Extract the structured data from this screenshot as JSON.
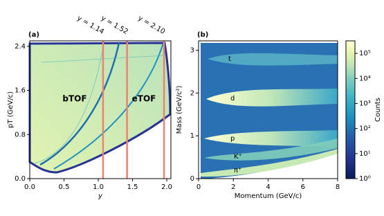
{
  "chart_data": [
    {
      "type": "heatmap",
      "panel_label": "(a)",
      "xlabel": "y",
      "ylabel": "pT (GeV/c)",
      "xlim": [
        0,
        2.06
      ],
      "ylim": [
        0,
        2.5
      ],
      "xticks": [
        {
          "value": 0,
          "label": "0.0"
        },
        0.5,
        {
          "value": 1,
          "label": "1.0"
        },
        1.5,
        {
          "value": 2,
          "label": "2.0"
        }
      ],
      "yticks": [
        {
          "value": 0,
          "label": "0.0"
        },
        0.8,
        1.6,
        2.4
      ],
      "vlines": [
        1.07,
        1.42,
        1.96
      ],
      "vline_color": "#f08070",
      "vline_labels": [
        "y = 1.14",
        "y = 1.52",
        "y = 2.10"
      ],
      "region_labels": [
        "bTOF",
        "eTOF"
      ]
    },
    {
      "type": "heatmap",
      "panel_label": "(b)",
      "xlabel": "Momentum (GeV/c)",
      "ylabel": "Mass (GeV/c²)",
      "xlim": [
        0,
        8
      ],
      "ylim": [
        0,
        3.22
      ],
      "xticks": [
        0,
        2,
        4,
        6,
        8
      ],
      "yticks": [
        0,
        1,
        2,
        3
      ],
      "particle_labels": [
        "t",
        "d",
        "p",
        "K⁺",
        "π⁺"
      ],
      "colorbar": {
        "label": "Counts",
        "scale": "log",
        "lim": [
          1,
          316228
        ],
        "ticks": [
          {
            "value": 1,
            "label": "10⁰"
          },
          {
            "value": 10,
            "label": "10¹"
          },
          {
            "value": 100,
            "label": "10²"
          },
          {
            "value": 1000,
            "label": "10³"
          },
          {
            "value": 10000,
            "label": "10⁴"
          },
          {
            "value": 100000,
            "label": "10⁵"
          }
        ]
      }
    }
  ]
}
